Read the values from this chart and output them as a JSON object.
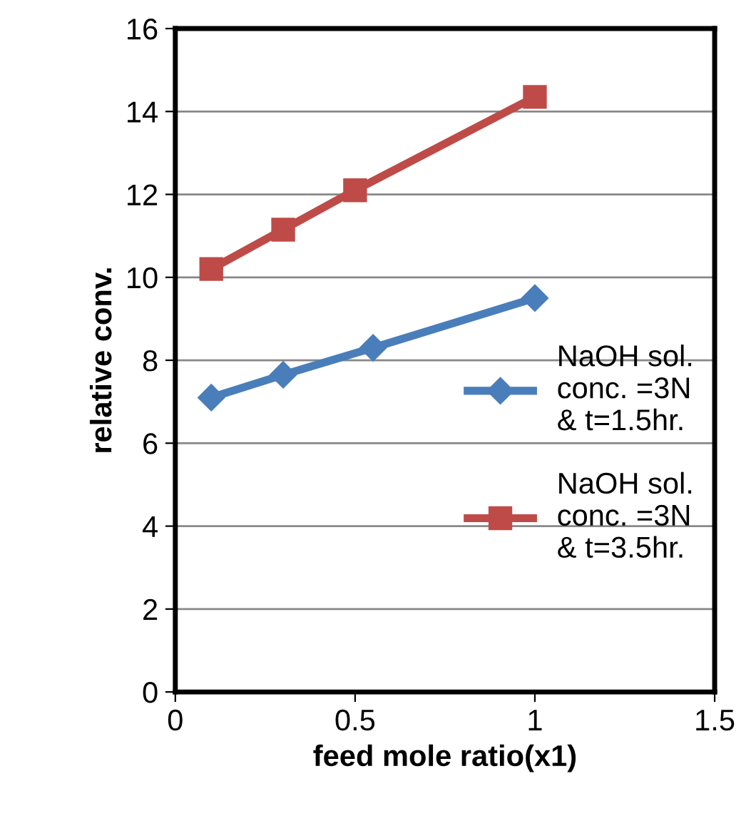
{
  "chart_data": {
    "type": "line",
    "xlabel": "feed mole ratio(x1)",
    "ylabel": "relative conv.",
    "xlim": [
      0,
      1.5
    ],
    "xticks": [
      0,
      0.5,
      1,
      1.5
    ],
    "ylim": [
      0,
      16
    ],
    "yticks": [
      0,
      2,
      4,
      6,
      8,
      10,
      12,
      14,
      16
    ],
    "grid": "y",
    "legend": "right",
    "series": [
      {
        "name": "NaOH sol.\nconc. =3N\n& t=1.5hr.",
        "color": "#4a7ebb",
        "marker": "diamond",
        "x": [
          0.1,
          0.3,
          0.55,
          1
        ],
        "values": [
          7.1,
          7.65,
          8.3,
          9.5
        ]
      },
      {
        "name": "NaOH sol.\nconc. =3N\n& t=3.5hr.",
        "color": "#be4b48",
        "marker": "square",
        "x": [
          0.1,
          0.3,
          0.5,
          1
        ],
        "values": [
          10.2,
          11.15,
          12.1,
          14.35
        ]
      }
    ]
  }
}
